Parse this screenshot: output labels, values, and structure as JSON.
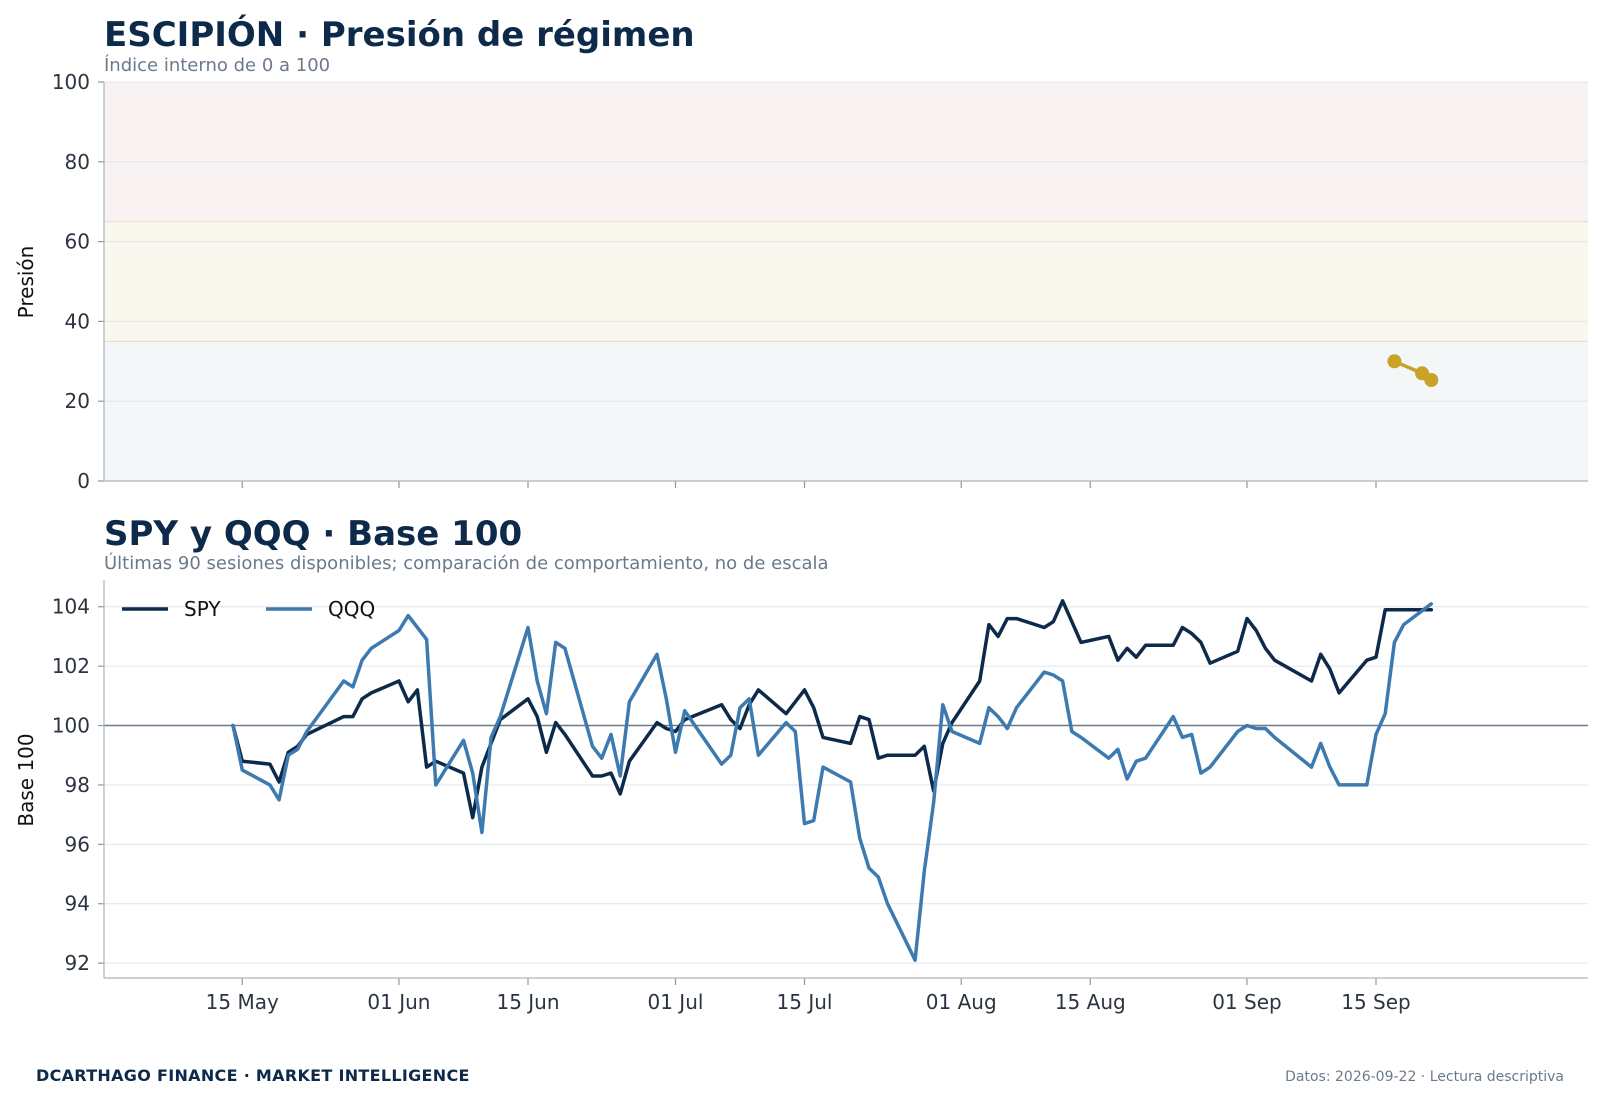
{
  "footer": {
    "left": "DCARTHAGO FINANCE · MARKET INTELLIGENCE",
    "right": "Datos: 2026-09-22 · Lectura descriptiva"
  },
  "colors": {
    "navy": "#0d2a4a",
    "spy": "#0d2a4a",
    "qqq": "#3d7ab0",
    "pressure": "#c9a227",
    "zone_high": "#f8f2f2",
    "zone_mid": "#faf8ee",
    "zone_low": "#f3f7f7",
    "baseline": "#6b7a8a",
    "grid": "#e1e6ea"
  },
  "chart_data": [
    {
      "type": "line",
      "title": "ESCIPIÓN · Presión de régimen",
      "subtitle": "Índice interno de 0 a 100",
      "ylabel": "Presión",
      "ylim": [
        0,
        100
      ],
      "yticks": [
        "0",
        "20",
        "40",
        "60",
        "80",
        "100"
      ],
      "zones": [
        {
          "from": 0,
          "to": 35,
          "color": "#f3f7f7"
        },
        {
          "from": 35,
          "to": 65,
          "color": "#faf8ee"
        },
        {
          "from": 65,
          "to": 100,
          "color": "#f8f2f2"
        }
      ],
      "series": [
        {
          "x": [
            "2026-09-17",
            "2026-09-20",
            "2026-09-21"
          ],
          "values": [
            30.0,
            27.0,
            25.3
          ]
        }
      ]
    },
    {
      "type": "line",
      "title": "SPY y QQQ · Base 100",
      "subtitle": "Últimas 90 sesiones disponibles; comparación de comportamiento, no de escala",
      "ylabel": "Base 100",
      "ylim": [
        91.5,
        104.9
      ],
      "yticks": [
        "92",
        "94",
        "96",
        "98",
        "100",
        "102",
        "104"
      ],
      "xticks": [
        {
          "date": "2026-05-15",
          "label": "15 May"
        },
        {
          "date": "2026-06-01",
          "label": "01 Jun"
        },
        {
          "date": "2026-06-15",
          "label": "15 Jun"
        },
        {
          "date": "2026-07-01",
          "label": "01 Jul"
        },
        {
          "date": "2026-07-15",
          "label": "15 Jul"
        },
        {
          "date": "2026-08-01",
          "label": "01 Aug"
        },
        {
          "date": "2026-08-15",
          "label": "15 Aug"
        },
        {
          "date": "2026-09-01",
          "label": "01 Sep"
        },
        {
          "date": "2026-09-15",
          "label": "15 Sep"
        }
      ],
      "baseline": 100,
      "x": [
        "2026-05-14",
        "2026-05-15",
        "2026-05-18",
        "2026-05-19",
        "2026-05-20",
        "2026-05-21",
        "2026-05-22",
        "2026-05-26",
        "2026-05-27",
        "2026-05-28",
        "2026-05-29",
        "2026-06-01",
        "2026-06-02",
        "2026-06-03",
        "2026-06-04",
        "2026-06-05",
        "2026-06-08",
        "2026-06-09",
        "2026-06-10",
        "2026-06-11",
        "2026-06-12",
        "2026-06-15",
        "2026-06-16",
        "2026-06-17",
        "2026-06-18",
        "2026-06-19",
        "2026-06-22",
        "2026-06-23",
        "2026-06-24",
        "2026-06-25",
        "2026-06-26",
        "2026-06-29",
        "2026-06-30",
        "2026-07-01",
        "2026-07-02",
        "2026-07-06",
        "2026-07-07",
        "2026-07-08",
        "2026-07-09",
        "2026-07-10",
        "2026-07-13",
        "2026-07-14",
        "2026-07-15",
        "2026-07-16",
        "2026-07-17",
        "2026-07-20",
        "2026-07-21",
        "2026-07-22",
        "2026-07-23",
        "2026-07-24",
        "2026-07-27",
        "2026-07-28",
        "2026-07-29",
        "2026-07-30",
        "2026-07-31",
        "2026-08-03",
        "2026-08-04",
        "2026-08-05",
        "2026-08-06",
        "2026-08-07",
        "2026-08-10",
        "2026-08-11",
        "2026-08-12",
        "2026-08-13",
        "2026-08-14",
        "2026-08-17",
        "2026-08-18",
        "2026-08-19",
        "2026-08-20",
        "2026-08-21",
        "2026-08-24",
        "2026-08-25",
        "2026-08-26",
        "2026-08-27",
        "2026-08-28",
        "2026-08-31",
        "2026-09-01",
        "2026-09-02",
        "2026-09-03",
        "2026-09-04",
        "2026-09-08",
        "2026-09-09",
        "2026-09-10",
        "2026-09-11",
        "2026-09-14",
        "2026-09-15",
        "2026-09-16",
        "2026-09-17",
        "2026-09-18",
        "2026-09-21"
      ],
      "series": [
        {
          "name": "SPY",
          "values": [
            100.0,
            98.8,
            98.7,
            98.1,
            99.1,
            99.3,
            99.7,
            100.3,
            100.3,
            100.9,
            101.1,
            101.5,
            100.8,
            101.2,
            98.6,
            98.8,
            98.4,
            96.9,
            98.6,
            99.4,
            100.2,
            100.9,
            100.3,
            99.1,
            100.1,
            99.7,
            98.3,
            98.3,
            98.4,
            97.7,
            98.8,
            100.1,
            99.9,
            99.8,
            100.2,
            100.7,
            100.2,
            99.9,
            100.7,
            101.2,
            100.4,
            100.8,
            101.2,
            100.6,
            99.6,
            99.4,
            100.3,
            100.2,
            98.9,
            99.0,
            99.0,
            99.3,
            97.8,
            99.4,
            100.1,
            101.5,
            103.4,
            103.0,
            103.6,
            103.6,
            103.3,
            103.5,
            104.2,
            103.5,
            102.8,
            103.0,
            102.2,
            102.6,
            102.3,
            102.7,
            102.7,
            103.3,
            103.1,
            102.8,
            102.1,
            102.5,
            103.6,
            103.2,
            102.6,
            102.2,
            101.5,
            102.4,
            101.9,
            101.1,
            102.2,
            102.3,
            103.9,
            103.9,
            103.9,
            103.9
          ],
          "color": "#0d2a4a"
        },
        {
          "name": "QQQ",
          "values": [
            100.0,
            98.5,
            98.0,
            97.5,
            99.0,
            99.2,
            99.8,
            101.5,
            101.3,
            102.2,
            102.6,
            103.2,
            103.7,
            103.3,
            102.9,
            98.0,
            99.5,
            98.4,
            96.4,
            99.6,
            100.3,
            103.3,
            101.5,
            100.4,
            102.8,
            102.6,
            99.3,
            98.9,
            99.7,
            98.3,
            100.8,
            102.4,
            100.9,
            99.1,
            100.5,
            98.7,
            99.0,
            100.6,
            100.9,
            99.0,
            100.1,
            99.8,
            96.7,
            96.8,
            98.6,
            98.1,
            96.2,
            95.2,
            94.9,
            94.0,
            92.1,
            95.1,
            97.4,
            100.7,
            99.8,
            99.4,
            100.6,
            100.3,
            99.9,
            100.6,
            101.8,
            101.7,
            101.5,
            99.8,
            99.6,
            98.9,
            99.2,
            98.2,
            98.8,
            98.9,
            100.3,
            99.6,
            99.7,
            98.4,
            98.6,
            99.8,
            100.0,
            99.9,
            99.9,
            99.6,
            98.6,
            99.4,
            98.6,
            98.0,
            98.0,
            99.7,
            100.4,
            102.8,
            103.4,
            104.1
          ],
          "color": "#3d7ab0"
        }
      ]
    }
  ]
}
